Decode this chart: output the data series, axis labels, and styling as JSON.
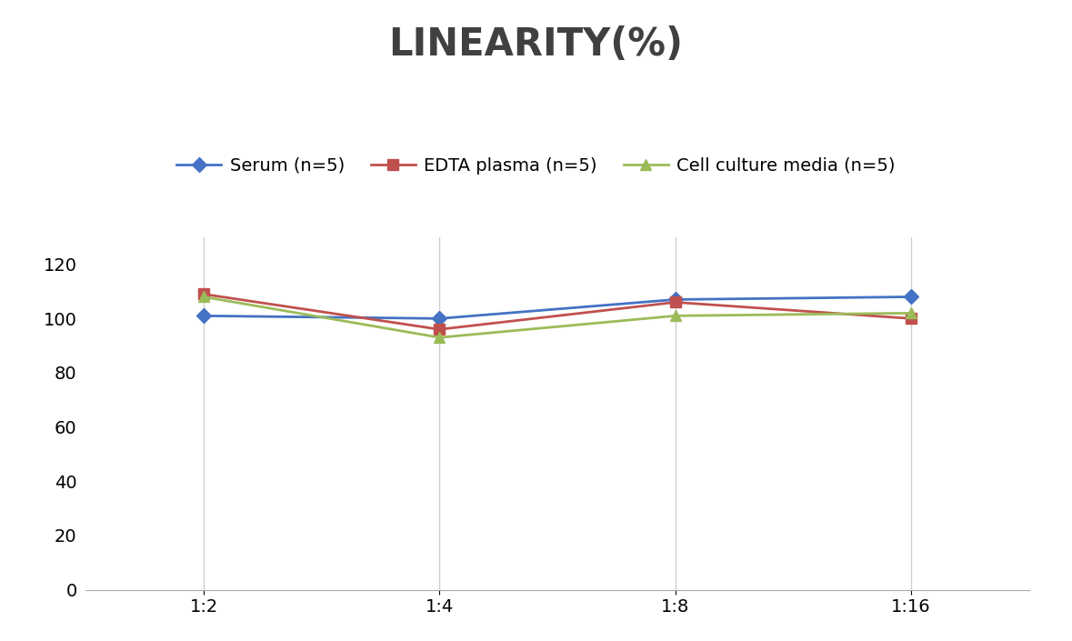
{
  "title": "LINEARITY(%)",
  "title_fontsize": 30,
  "title_fontweight": "bold",
  "title_color": "#404040",
  "x_labels": [
    "1:2",
    "1:4",
    "1:8",
    "1:16"
  ],
  "x_positions": [
    0,
    1,
    2,
    3
  ],
  "series": [
    {
      "label": "Serum (n=5)",
      "values": [
        101,
        100,
        107,
        108
      ],
      "color": "#4472C4",
      "marker": "D",
      "markersize": 8,
      "linewidth": 2
    },
    {
      "label": "EDTA plasma (n=5)",
      "values": [
        109,
        96,
        106,
        100
      ],
      "color": "#C0504D",
      "marker": "s",
      "markersize": 8,
      "linewidth": 2
    },
    {
      "label": "Cell culture media (n=5)",
      "values": [
        108,
        93,
        101,
        102
      ],
      "color": "#9BBB59",
      "marker": "^",
      "markersize": 8,
      "linewidth": 2
    }
  ],
  "ylim": [
    0,
    130
  ],
  "yticks": [
    0,
    20,
    40,
    60,
    80,
    100,
    120
  ],
  "grid_color": "#D0D0D0",
  "background_color": "#FFFFFF",
  "legend_fontsize": 14,
  "tick_fontsize": 14
}
